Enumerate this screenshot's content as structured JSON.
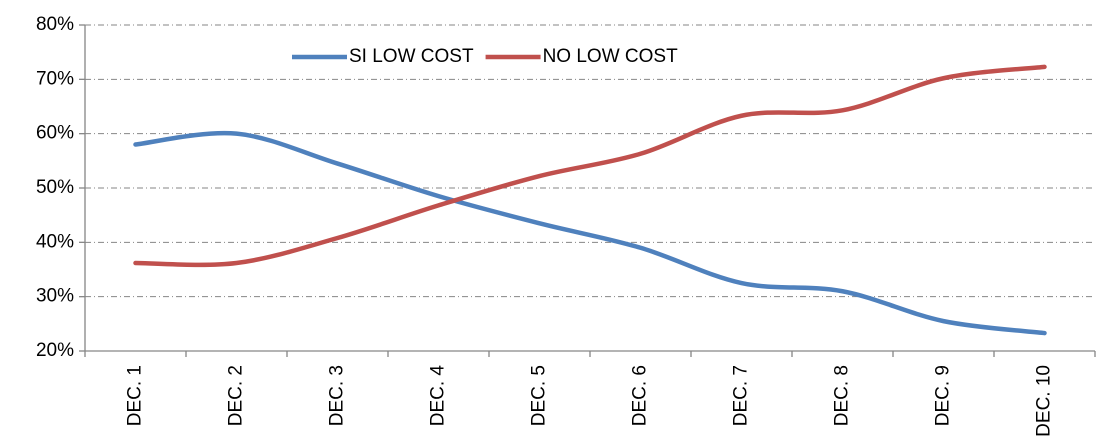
{
  "chart_data": {
    "type": "line",
    "title": "",
    "xlabel": "",
    "ylabel": "",
    "categories": [
      "DEC. 1",
      "DEC. 2",
      "DEC. 3",
      "DEC. 4",
      "DEC. 5",
      "DEC. 6",
      "DEC. 7",
      "DEC. 8",
      "DEC. 9",
      "DEC. 10"
    ],
    "y_ticks": [
      "20%",
      "30%",
      "40%",
      "50%",
      "60%",
      "70%",
      "80%"
    ],
    "ylim": [
      20,
      80
    ],
    "grid": true,
    "legend_position": "top-center",
    "series": [
      {
        "name": "SI LOW COST",
        "color": "#4F81BD",
        "values": [
          58,
          60,
          54.5,
          48.5,
          43.5,
          39,
          32.5,
          31,
          25.5,
          23.3
        ]
      },
      {
        "name": "NO LOW COST",
        "color": "#C0504D",
        "values": [
          36.2,
          36.2,
          40.8,
          46.8,
          52.2,
          56.3,
          63.3,
          64.3,
          70.2,
          72.3
        ]
      }
    ]
  }
}
